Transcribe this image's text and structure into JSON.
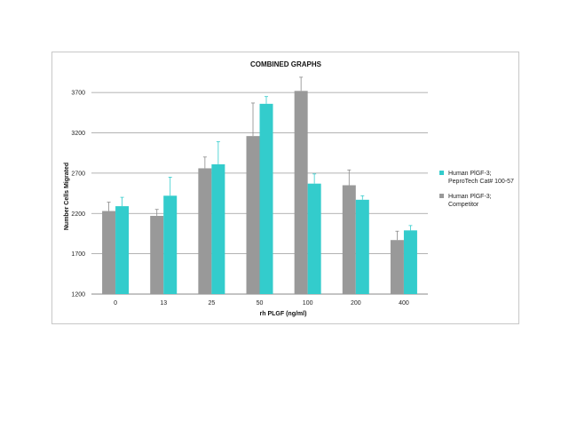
{
  "chart_data": {
    "type": "bar",
    "title": "COMBINED GRAPHS",
    "xlabel": "rh PLGF (ng/ml)",
    "ylabel": "Number Cells Migrated",
    "categories": [
      "0",
      "13",
      "25",
      "50",
      "100",
      "200",
      "400"
    ],
    "yticks": [
      1200,
      1700,
      2200,
      2700,
      3200,
      3700
    ],
    "ylim": [
      1200,
      3900
    ],
    "grid": true,
    "legend_position": "right",
    "series": [
      {
        "name": "Human PlGF-3; Competitor",
        "legend_lines": [
          "Human PlGF-3;",
          "Competitor"
        ],
        "color": "#999999",
        "values": [
          2230,
          2170,
          2760,
          3160,
          3720,
          2550,
          1870
        ],
        "errors": [
          110,
          80,
          140,
          410,
          170,
          190,
          110
        ]
      },
      {
        "name": "Human PlGF-3; PeproTech Cat# 100-57",
        "legend_lines": [
          "Human PlGF-3;",
          "PeproTech Cat# 100-57"
        ],
        "color": "#33CCCC",
        "values": [
          2290,
          2420,
          2810,
          3560,
          2570,
          2370,
          1990
        ],
        "errors": [
          110,
          230,
          280,
          90,
          120,
          50,
          60
        ]
      }
    ],
    "legend_order": [
      1,
      0
    ]
  }
}
